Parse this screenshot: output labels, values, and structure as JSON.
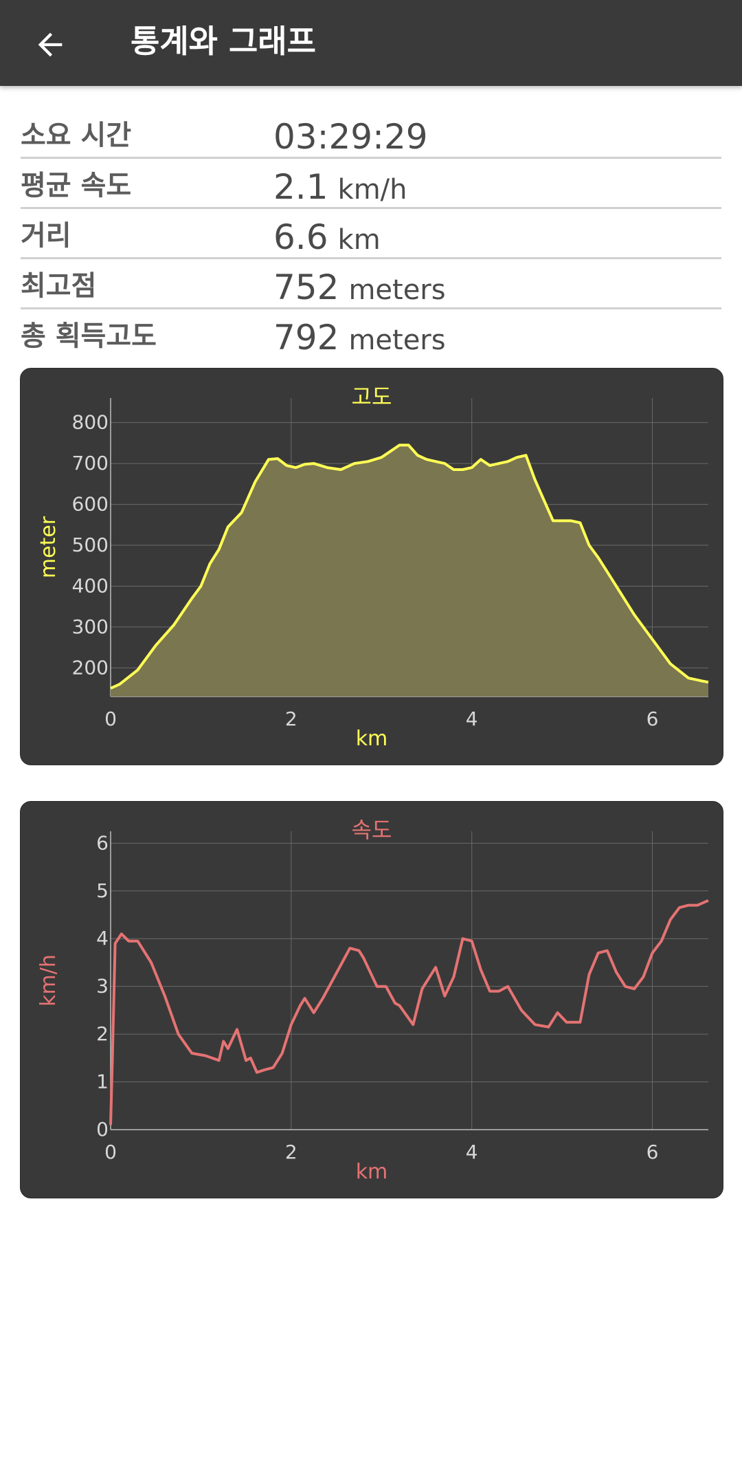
{
  "header": {
    "title": "통계와 그래프",
    "back_icon": "arrow-left-icon"
  },
  "stats": [
    {
      "label": "소요 시간",
      "value": "03:29:29",
      "unit": ""
    },
    {
      "label": "평균 속도",
      "value": "2.1",
      "unit": "km/h"
    },
    {
      "label": "거리",
      "value": "6.6",
      "unit": "km"
    },
    {
      "label": "최고점",
      "value": "752",
      "unit": "meters"
    },
    {
      "label": "총 획득고도",
      "value": "792",
      "unit": "meters"
    }
  ],
  "colors": {
    "altitude_line": "#ffff55",
    "altitude_fill": "#7a7650",
    "speed_line": "#e57373",
    "card_bg": "#3a3939",
    "grid": "#6a6a6a",
    "tick_text": "#d8d8d8"
  },
  "chart_data": [
    {
      "type": "area",
      "title": "고도",
      "xlabel": "km",
      "ylabel": "meter",
      "xlim": [
        0,
        6.62
      ],
      "ylim": [
        130,
        860
      ],
      "xticks": [
        0,
        2,
        4,
        6
      ],
      "yticks": [
        200,
        300,
        400,
        500,
        600,
        700,
        800
      ],
      "grid": true,
      "series": [
        {
          "x": [
            0,
            0.1,
            0.3,
            0.5,
            0.7,
            0.9,
            1.0,
            1.1,
            1.2,
            1.3,
            1.45,
            1.6,
            1.75,
            1.85,
            1.95,
            2.05,
            2.15,
            2.25,
            2.4,
            2.55,
            2.7,
            2.85,
            3.0,
            3.1,
            3.2,
            3.3,
            3.4,
            3.5,
            3.6,
            3.7,
            3.8,
            3.9,
            4.0,
            4.1,
            4.2,
            4.3,
            4.4,
            4.5,
            4.6,
            4.7,
            4.8,
            4.9,
            5.0,
            5.1,
            5.2,
            5.3,
            5.4,
            5.6,
            5.8,
            6.0,
            6.2,
            6.4,
            6.55,
            6.62
          ],
          "y": [
            150,
            160,
            195,
            255,
            305,
            370,
            400,
            455,
            490,
            545,
            580,
            655,
            710,
            712,
            695,
            690,
            698,
            700,
            690,
            685,
            700,
            705,
            715,
            730,
            745,
            745,
            720,
            710,
            705,
            700,
            685,
            685,
            690,
            710,
            695,
            700,
            705,
            715,
            720,
            660,
            610,
            560,
            560,
            560,
            555,
            500,
            470,
            400,
            330,
            270,
            210,
            175,
            168,
            165
          ]
        }
      ]
    },
    {
      "type": "line",
      "title": "속도",
      "xlabel": "km",
      "ylabel": "km/h",
      "xlim": [
        0,
        6.62
      ],
      "ylim": [
        0,
        6.25
      ],
      "xticks": [
        0,
        2,
        4,
        6
      ],
      "yticks": [
        0,
        1,
        2,
        3,
        4,
        5,
        6
      ],
      "grid": true,
      "series": [
        {
          "x": [
            0,
            0.02,
            0.05,
            0.12,
            0.2,
            0.3,
            0.45,
            0.6,
            0.75,
            0.9,
            1.05,
            1.2,
            1.25,
            1.3,
            1.4,
            1.5,
            1.55,
            1.62,
            1.7,
            1.8,
            1.9,
            2.0,
            2.1,
            2.15,
            2.25,
            2.35,
            2.45,
            2.55,
            2.65,
            2.75,
            2.8,
            2.95,
            3.05,
            3.15,
            3.2,
            3.35,
            3.45,
            3.6,
            3.7,
            3.8,
            3.9,
            4.0,
            4.1,
            4.2,
            4.3,
            4.4,
            4.55,
            4.7,
            4.85,
            4.95,
            5.05,
            5.2,
            5.3,
            5.4,
            5.5,
            5.6,
            5.7,
            5.8,
            5.9,
            6.0,
            6.1,
            6.2,
            6.3,
            6.4,
            6.5,
            6.62
          ],
          "y": [
            0.1,
            1.5,
            3.9,
            4.1,
            3.95,
            3.95,
            3.5,
            2.8,
            2.0,
            1.6,
            1.55,
            1.45,
            1.85,
            1.7,
            2.1,
            1.45,
            1.5,
            1.2,
            1.25,
            1.3,
            1.6,
            2.2,
            2.6,
            2.75,
            2.45,
            2.75,
            3.1,
            3.45,
            3.8,
            3.75,
            3.6,
            3.0,
            3.0,
            2.65,
            2.6,
            2.2,
            2.95,
            3.4,
            2.8,
            3.2,
            4.0,
            3.95,
            3.35,
            2.9,
            2.9,
            3.0,
            2.5,
            2.2,
            2.15,
            2.45,
            2.25,
            2.25,
            3.25,
            3.7,
            3.75,
            3.3,
            3.0,
            2.95,
            3.2,
            3.7,
            3.95,
            4.4,
            4.65,
            4.7,
            4.7,
            4.8
          ]
        }
      ]
    }
  ]
}
